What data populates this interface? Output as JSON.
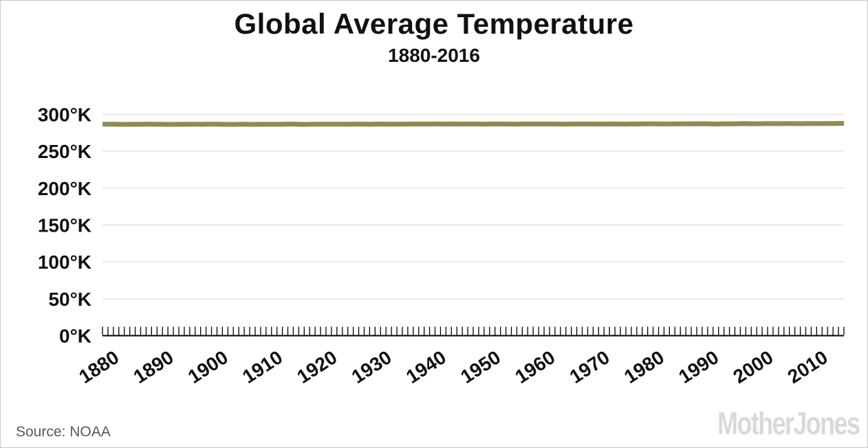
{
  "header": {
    "title": "Global Average Temperature",
    "subtitle": "1880-2016"
  },
  "footer": {
    "source_label": "Source: NOAA",
    "brand": "MotherJones"
  },
  "colors": {
    "line": "#918a52",
    "grid": "#e9e9e9",
    "axis": "#000000",
    "text": "#111111",
    "source_text": "#595959",
    "brand_gray": "#d9d9d9",
    "border": "#c9c9c9"
  },
  "chart_data": {
    "type": "line",
    "title": "Global Average Temperature",
    "subtitle": "1880-2016",
    "x_start": 1880,
    "x_end": 2016,
    "x_step": 1,
    "grid": "horizontal gridlines only",
    "legend": "none",
    "y_axis": {
      "unit": "°K",
      "ylim": [
        0,
        300
      ],
      "tick_values": [
        300,
        250,
        200,
        150,
        100,
        50,
        0
      ],
      "tick_labels": [
        "300°K",
        "250°K",
        "200°K",
        "150°K",
        "100°K",
        "50°K",
        "0°K"
      ]
    },
    "x_axis": {
      "tick_labels": [
        "1880",
        "1890",
        "1900",
        "1910",
        "1920",
        "1930",
        "1940",
        "1950",
        "1960",
        "1970",
        "1980",
        "1990",
        "2000",
        "2010"
      ],
      "minor_tick_every_years": 1,
      "label_rotation_deg": -33
    },
    "series": [
      {
        "name": "Global average temperature (°K)",
        "values": [
          286.6,
          286.7,
          286.7,
          286.6,
          286.5,
          286.6,
          286.6,
          286.6,
          286.7,
          286.7,
          286.6,
          286.6,
          286.5,
          286.5,
          286.6,
          286.6,
          286.7,
          286.7,
          286.6,
          286.7,
          286.7,
          286.7,
          286.6,
          286.5,
          286.5,
          286.6,
          286.7,
          286.5,
          286.5,
          286.6,
          286.6,
          286.6,
          286.6,
          286.6,
          286.8,
          286.8,
          286.6,
          286.5,
          286.6,
          286.7,
          286.7,
          286.7,
          286.7,
          286.7,
          286.7,
          286.7,
          286.8,
          286.8,
          286.8,
          286.6,
          286.8,
          286.9,
          286.8,
          286.7,
          286.8,
          286.8,
          286.8,
          287.0,
          287.0,
          287.0,
          287.0,
          287.1,
          287.0,
          287.0,
          287.1,
          287.0,
          286.9,
          287.0,
          286.9,
          286.9,
          286.8,
          286.9,
          287.0,
          287.0,
          286.9,
          286.8,
          286.8,
          287.0,
          287.0,
          286.9,
          286.9,
          287.0,
          287.0,
          287.0,
          286.8,
          286.8,
          286.9,
          286.9,
          286.9,
          287.0,
          287.0,
          286.9,
          286.9,
          287.1,
          286.9,
          286.9,
          286.8,
          287.1,
          287.0,
          287.1,
          287.2,
          287.2,
          287.1,
          287.2,
          287.1,
          287.1,
          287.2,
          287.2,
          287.3,
          287.2,
          287.3,
          287.3,
          287.0,
          287.1,
          287.2,
          287.3,
          287.2,
          287.4,
          287.5,
          287.3,
          287.3,
          287.4,
          287.5,
          287.5,
          287.4,
          287.5,
          287.5,
          287.5,
          287.4,
          287.5,
          287.6,
          287.5,
          287.5,
          287.6,
          287.6,
          287.8,
          287.9
        ]
      }
    ]
  }
}
